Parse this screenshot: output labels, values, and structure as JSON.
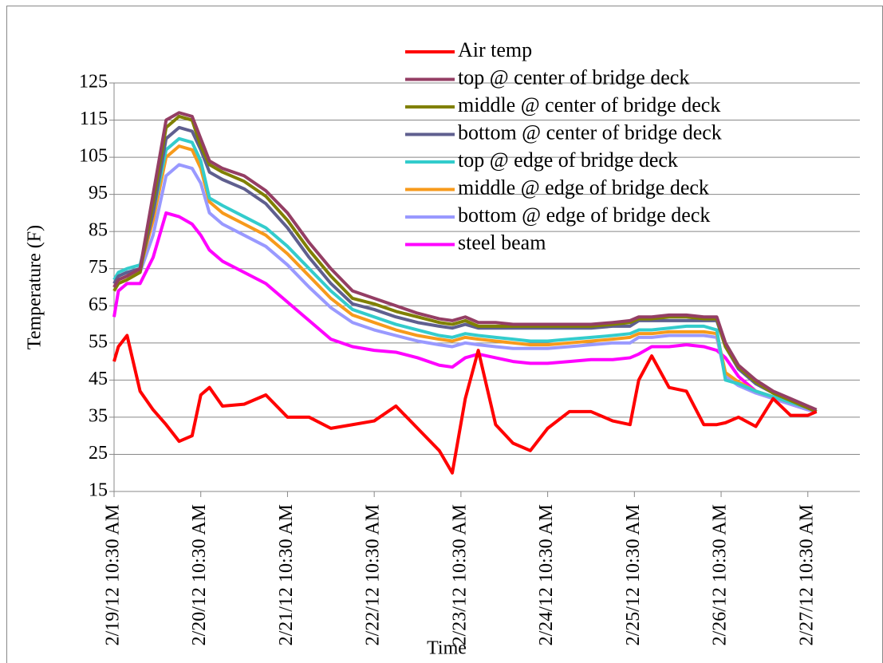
{
  "chart_data": {
    "type": "line",
    "xlabel": "Time",
    "ylabel": "Temperature (F)",
    "x": [
      0,
      0.05,
      0.15,
      0.3,
      0.45,
      0.6,
      0.75,
      0.9,
      1.0,
      1.1,
      1.25,
      1.5,
      1.75,
      2.0,
      2.25,
      2.5,
      2.75,
      3.0,
      3.25,
      3.5,
      3.75,
      3.9,
      4.05,
      4.2,
      4.4,
      4.6,
      4.8,
      5.0,
      5.25,
      5.5,
      5.75,
      5.95,
      6.05,
      6.2,
      6.4,
      6.6,
      6.8,
      6.95,
      7.05,
      7.2,
      7.4,
      7.6,
      7.8,
      8.0,
      8.1
    ],
    "xlim": [
      0,
      8.6
    ],
    "xticks": [
      {
        "value": 0,
        "label": "2/19/12 10:30 AM"
      },
      {
        "value": 1,
        "label": "2/20/12 10:30 AM"
      },
      {
        "value": 2,
        "label": "2/21/12 10:30 AM"
      },
      {
        "value": 3,
        "label": "2/22/12 10:30 AM"
      },
      {
        "value": 4,
        "label": "2/23/12 10:30 AM"
      },
      {
        "value": 5,
        "label": "2/24/12 10:30 AM"
      },
      {
        "value": 6,
        "label": "2/25/12 10:30 AM"
      },
      {
        "value": 7,
        "label": "2/26/12 10:30 AM"
      },
      {
        "value": 8,
        "label": "2/27/12 10:30 AM"
      }
    ],
    "ylim": [
      15,
      125
    ],
    "yticks": [
      15,
      25,
      35,
      45,
      55,
      65,
      75,
      85,
      95,
      105,
      115,
      125
    ],
    "grid": true,
    "legend": "top",
    "series": [
      {
        "name": "Air temp",
        "color": "#FF0000",
        "values": [
          50,
          54,
          57,
          42,
          37,
          33,
          28.5,
          30,
          41,
          43,
          38,
          38.5,
          41,
          35,
          35,
          32,
          33,
          34,
          38,
          32,
          26,
          20,
          40,
          53,
          33,
          28,
          26,
          32,
          36.5,
          36.5,
          34,
          33,
          45,
          51.5,
          43,
          42,
          33,
          33,
          33.5,
          35,
          32.5,
          40,
          35.5,
          35.5,
          36.5
        ]
      },
      {
        "name": "top @ center of bridge deck",
        "color": "#943E64",
        "values": [
          70,
          72,
          73,
          75,
          95,
          115,
          117,
          116,
          110,
          104,
          102,
          100,
          96,
          90,
          82,
          75,
          69,
          67,
          65,
          63,
          61.5,
          61,
          62,
          60.5,
          60.5,
          60,
          60,
          60,
          60,
          60,
          60.5,
          61,
          62,
          62,
          62.5,
          62.5,
          62,
          62,
          55,
          49,
          45,
          42,
          40,
          38,
          37
        ]
      },
      {
        "name": "middle @ center of bridge deck",
        "color": "#808000",
        "values": [
          69,
          71,
          72,
          74,
          93,
          113,
          116,
          115,
          108,
          103,
          101,
          98.5,
          94.5,
          88,
          80,
          73,
          67,
          65.5,
          63.5,
          62,
          60.5,
          60,
          61,
          59.5,
          59.5,
          59.5,
          59.5,
          59.5,
          59.5,
          59.5,
          60,
          60.5,
          61.5,
          61.5,
          62,
          62,
          61.5,
          61.5,
          54,
          48.5,
          44.5,
          41.5,
          39.5,
          37.5,
          36.5
        ]
      },
      {
        "name": "bottom @ center  of bridge deck",
        "color": "#5F5F8F",
        "values": [
          71,
          73,
          74,
          75,
          90,
          110,
          113,
          112,
          107,
          101,
          99,
          96.5,
          92.5,
          86,
          78,
          71,
          65.5,
          64,
          62,
          60.5,
          59.5,
          59,
          60,
          59,
          59,
          59,
          59,
          59,
          59,
          59,
          59.5,
          59.5,
          61,
          61,
          61,
          61,
          61,
          61,
          54,
          48,
          44,
          41.5,
          39.5,
          37.5,
          36.5
        ]
      },
      {
        "name": "top @ edge of bridge deck",
        "color": "#33CCCC",
        "values": [
          72,
          74,
          75,
          76,
          90,
          107,
          110,
          109,
          104,
          94,
          92,
          89,
          86,
          81,
          75,
          69,
          64,
          62,
          60,
          58.5,
          57,
          56.5,
          57.5,
          57,
          56.5,
          56,
          55.5,
          55.5,
          56,
          56.5,
          57,
          57.5,
          58.5,
          58.5,
          59,
          59.5,
          59.5,
          58.5,
          45,
          44,
          42,
          40.5,
          39,
          37.5,
          36.5
        ]
      },
      {
        "name": "middle @ edge of bridge deck",
        "color": "#F79A1B",
        "values": [
          70,
          72,
          73,
          75,
          88,
          105,
          108,
          107,
          102,
          93,
          90,
          87,
          84,
          79,
          73,
          67,
          62.5,
          60.5,
          58.5,
          57,
          56,
          55.5,
          56.5,
          56,
          55.5,
          55,
          54.5,
          54.5,
          55,
          55.5,
          56,
          56.5,
          57.5,
          57.5,
          58,
          58,
          58,
          57.5,
          47,
          44.5,
          42,
          40.5,
          39,
          37.5,
          36.5
        ]
      },
      {
        "name": "bottom @ edge of bridge deck",
        "color": "#9999FF",
        "values": [
          71,
          73,
          74,
          74,
          84,
          100,
          103,
          102,
          98,
          90,
          87,
          84,
          81,
          76,
          70,
          64.5,
          60.5,
          58.5,
          57,
          55.5,
          54.5,
          54,
          55,
          54.5,
          54,
          53.5,
          53.5,
          53.5,
          54,
          54.5,
          55,
          55,
          56.5,
          56.5,
          57,
          57,
          57,
          56.5,
          46,
          43.5,
          41.5,
          40,
          38.5,
          37,
          36.5
        ]
      },
      {
        "name": "steel beam",
        "color": "#FF00FF",
        "values": [
          62,
          69,
          71,
          71,
          78,
          90,
          89,
          87,
          84,
          80,
          77,
          74,
          71,
          66,
          61,
          56,
          54,
          53,
          52.5,
          51,
          49,
          48.5,
          51,
          52,
          51,
          50,
          49.5,
          49.5,
          50,
          50.5,
          50.5,
          51,
          52,
          54,
          54,
          54.5,
          54,
          53,
          51,
          46,
          42,
          40,
          38.5,
          37,
          36.5
        ]
      }
    ]
  }
}
